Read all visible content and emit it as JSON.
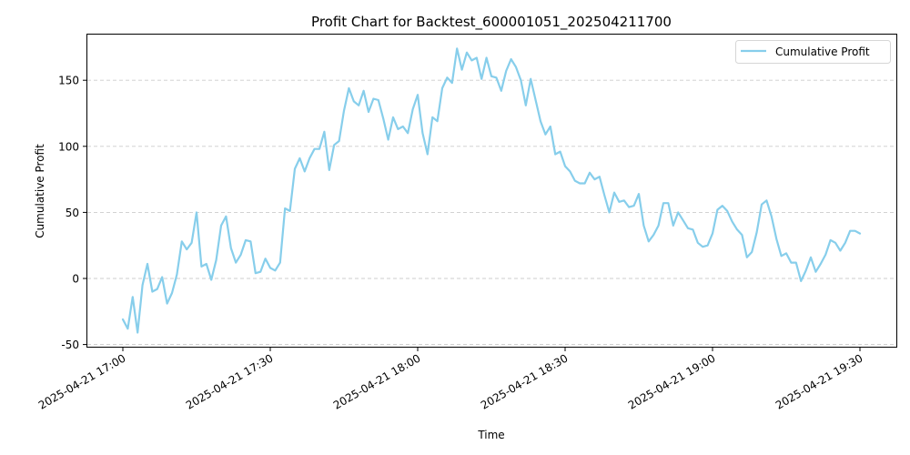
{
  "chart_data": {
    "type": "line",
    "title": "Profit Chart for Backtest_600001051_202504211700",
    "xlabel": "Time",
    "ylabel": "Cumulative Profit",
    "ylim": [
      -52,
      184
    ],
    "xlim_minutes": [
      -7.4,
      157.4
    ],
    "grid": {
      "axis": "y",
      "style": "dashed",
      "color": "#cccccc"
    },
    "legend": {
      "position": "upper right",
      "entries": [
        "Cumulative Profit"
      ]
    },
    "x_ticks": [
      {
        "minute": 0,
        "label": "2025-04-21 17:00"
      },
      {
        "minute": 30,
        "label": "2025-04-21 17:30"
      },
      {
        "minute": 60,
        "label": "2025-04-21 18:00"
      },
      {
        "minute": 90,
        "label": "2025-04-21 18:30"
      },
      {
        "minute": 120,
        "label": "2025-04-21 19:00"
      },
      {
        "minute": 150,
        "label": "2025-04-21 19:30"
      }
    ],
    "y_ticks": [
      -50,
      0,
      50,
      100,
      150
    ],
    "x_start": "2025-04-21 17:00",
    "x_step_minutes": 1,
    "series": [
      {
        "name": "Cumulative Profit",
        "color": "#87ceeb",
        "values": [
          -31,
          -38,
          -14,
          -41,
          -5,
          11,
          -10,
          -8,
          1,
          -19,
          -11,
          3,
          28,
          22,
          27,
          50,
          9,
          11,
          -1,
          14,
          40,
          47,
          23,
          12,
          18,
          29,
          28,
          4,
          5,
          15,
          8,
          6,
          12,
          53,
          51,
          83,
          91,
          81,
          91,
          98,
          98,
          111,
          82,
          101,
          104,
          127,
          144,
          134,
          131,
          142,
          126,
          136,
          135,
          121,
          105,
          122,
          113,
          115,
          110,
          128,
          139,
          110,
          94,
          122,
          119,
          144,
          152,
          148,
          174,
          158,
          171,
          165,
          167,
          151,
          167,
          153,
          152,
          142,
          157,
          166,
          160,
          150,
          131,
          151,
          135,
          119,
          109,
          115,
          94,
          96,
          85,
          81,
          74,
          72,
          72,
          80,
          75,
          77,
          63,
          50,
          65,
          58,
          59,
          54,
          55,
          64,
          40,
          28,
          33,
          40,
          57,
          57,
          40,
          50,
          44,
          38,
          37,
          27,
          24,
          25,
          34,
          52,
          55,
          51,
          43,
          37,
          33,
          16,
          20,
          35,
          56,
          59,
          47,
          30,
          17,
          19,
          12,
          12,
          -2,
          6,
          16,
          5,
          11,
          18,
          29,
          27,
          21,
          27,
          36,
          36,
          34
        ]
      }
    ]
  },
  "legend": {
    "label": "Cumulative Profit"
  }
}
